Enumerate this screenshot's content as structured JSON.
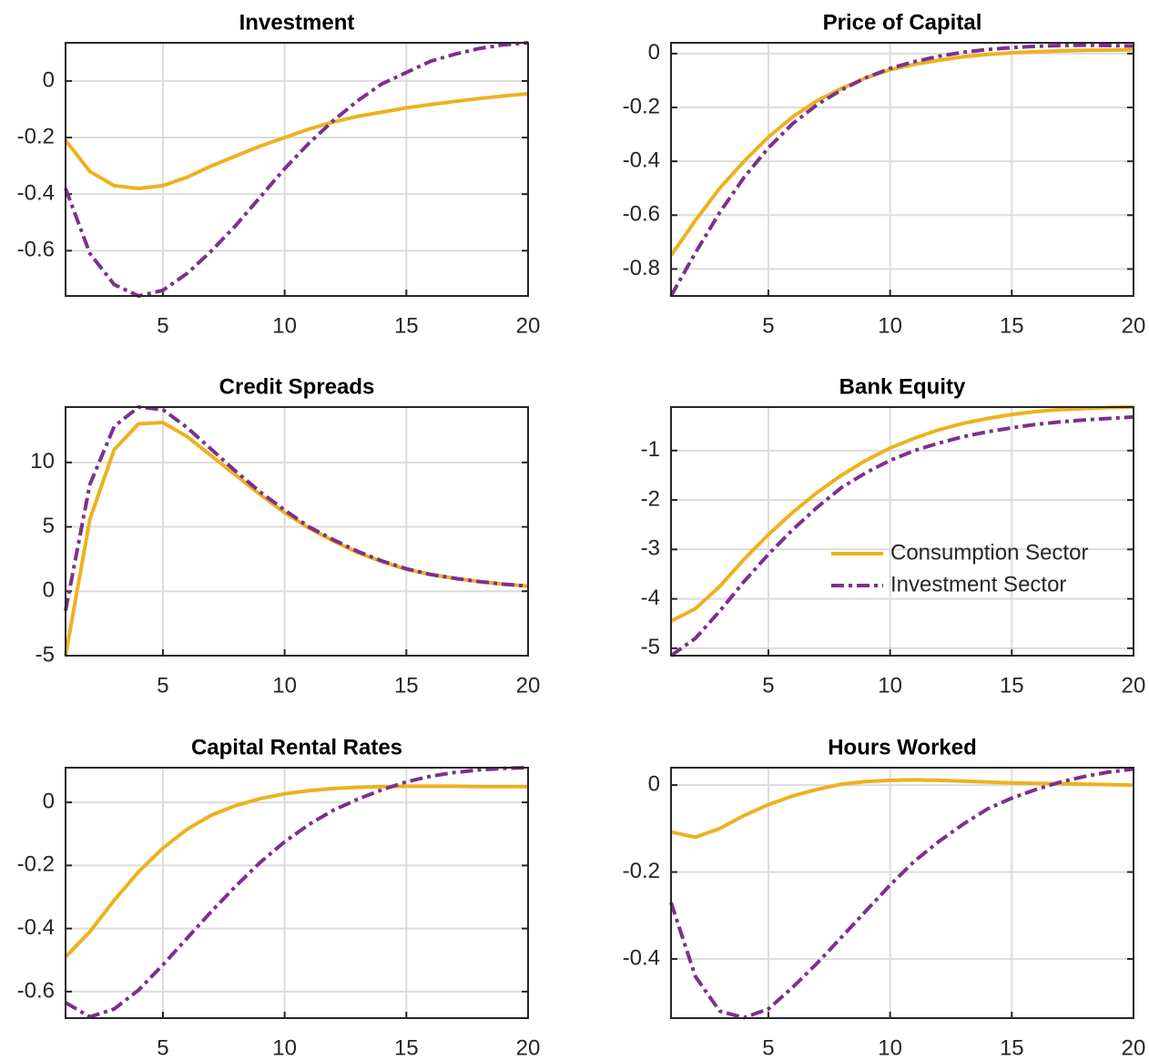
{
  "chart_data": [
    {
      "type": "line",
      "title": "Investment",
      "grid": true,
      "x": [
        1,
        2,
        3,
        4,
        5,
        6,
        7,
        8,
        9,
        10,
        11,
        12,
        13,
        14,
        15,
        16,
        17,
        18,
        19,
        20
      ],
      "xlim": [
        1,
        20
      ],
      "xticks": [
        5,
        10,
        15,
        20
      ],
      "ylim": [
        -0.76,
        0.135
      ],
      "yticks": [
        -0.6,
        -0.4,
        -0.2,
        0
      ],
      "series": [
        {
          "color": "#EDB120",
          "style": "solid",
          "values": [
            -0.21,
            -0.32,
            -0.37,
            -0.38,
            -0.37,
            -0.34,
            -0.3,
            -0.265,
            -0.23,
            -0.2,
            -0.17,
            -0.145,
            -0.125,
            -0.11,
            -0.095,
            -0.083,
            -0.072,
            -0.062,
            -0.053,
            -0.045
          ]
        },
        {
          "color": "#7E2F8E",
          "style": "dashdot",
          "values": [
            -0.38,
            -0.61,
            -0.72,
            -0.76,
            -0.74,
            -0.68,
            -0.6,
            -0.51,
            -0.41,
            -0.31,
            -0.22,
            -0.14,
            -0.07,
            -0.01,
            0.03,
            0.07,
            0.095,
            0.115,
            0.128,
            0.135
          ]
        }
      ]
    },
    {
      "type": "line",
      "title": "Price of Capital",
      "grid": true,
      "x": [
        1,
        2,
        3,
        4,
        5,
        6,
        7,
        8,
        9,
        10,
        11,
        12,
        13,
        14,
        15,
        16,
        17,
        18,
        19,
        20
      ],
      "xlim": [
        1,
        20
      ],
      "xticks": [
        5,
        10,
        15,
        20
      ],
      "ylim": [
        -0.9,
        0.04
      ],
      "yticks": [
        -0.8,
        -0.6,
        -0.4,
        -0.2,
        0
      ],
      "series": [
        {
          "color": "#EDB120",
          "style": "solid",
          "values": [
            -0.75,
            -0.62,
            -0.5,
            -0.4,
            -0.31,
            -0.235,
            -0.175,
            -0.13,
            -0.09,
            -0.06,
            -0.04,
            -0.025,
            -0.012,
            -0.003,
            0.003,
            0.007,
            0.01,
            0.012,
            0.013,
            0.014
          ]
        },
        {
          "color": "#7E2F8E",
          "style": "dashdot",
          "values": [
            -0.9,
            -0.74,
            -0.59,
            -0.46,
            -0.35,
            -0.26,
            -0.19,
            -0.135,
            -0.09,
            -0.055,
            -0.03,
            -0.01,
            0.005,
            0.015,
            0.022,
            0.027,
            0.03,
            0.031,
            0.03,
            0.028
          ]
        }
      ]
    },
    {
      "type": "line",
      "title": "Credit Spreads",
      "grid": true,
      "x": [
        1,
        2,
        3,
        4,
        5,
        6,
        7,
        8,
        9,
        10,
        11,
        12,
        13,
        14,
        15,
        16,
        17,
        18,
        19,
        20
      ],
      "xlim": [
        1,
        20
      ],
      "xticks": [
        5,
        10,
        15,
        20
      ],
      "ylim": [
        -5,
        14.3
      ],
      "yticks": [
        -5,
        0,
        5,
        10
      ],
      "series": [
        {
          "color": "#EDB120",
          "style": "solid",
          "values": [
            -5,
            5.6,
            11,
            13,
            13.1,
            12,
            10.5,
            9,
            7.5,
            6.1,
            4.9,
            3.9,
            3.0,
            2.3,
            1.7,
            1.3,
            1.0,
            0.75,
            0.55,
            0.4
          ]
        },
        {
          "color": "#7E2F8E",
          "style": "dashdot",
          "values": [
            -1.5,
            8.3,
            12.8,
            14.3,
            14.1,
            12.7,
            11,
            9.3,
            7.7,
            6.3,
            5.0,
            4.0,
            3.1,
            2.35,
            1.75,
            1.3,
            1.0,
            0.75,
            0.55,
            0.4
          ]
        }
      ]
    },
    {
      "type": "line",
      "title": "Bank Equity",
      "grid": true,
      "legend": "lower right",
      "x": [
        1,
        2,
        3,
        4,
        5,
        6,
        7,
        8,
        9,
        10,
        11,
        12,
        13,
        14,
        15,
        16,
        17,
        18,
        19,
        20
      ],
      "xlim": [
        1,
        20
      ],
      "xticks": [
        5,
        10,
        15,
        20
      ],
      "ylim": [
        -5.15,
        -0.12
      ],
      "yticks": [
        -5,
        -4,
        -3,
        -2,
        -1
      ],
      "series": [
        {
          "name": "Consumption Sector",
          "color": "#EDB120",
          "style": "solid",
          "values": [
            -4.45,
            -4.2,
            -3.75,
            -3.2,
            -2.7,
            -2.25,
            -1.85,
            -1.5,
            -1.2,
            -0.95,
            -0.75,
            -0.58,
            -0.45,
            -0.35,
            -0.27,
            -0.21,
            -0.17,
            -0.15,
            -0.13,
            -0.12
          ]
        },
        {
          "name": "Investment Sector",
          "color": "#7E2F8E",
          "style": "dashdot",
          "values": [
            -5.15,
            -4.8,
            -4.25,
            -3.65,
            -3.1,
            -2.6,
            -2.15,
            -1.75,
            -1.45,
            -1.2,
            -1.0,
            -0.85,
            -0.72,
            -0.62,
            -0.54,
            -0.47,
            -0.42,
            -0.38,
            -0.35,
            -0.32
          ]
        }
      ]
    },
    {
      "type": "line",
      "title": "Capital Rental Rates",
      "grid": true,
      "x": [
        1,
        2,
        3,
        4,
        5,
        6,
        7,
        8,
        9,
        10,
        11,
        12,
        13,
        14,
        15,
        16,
        17,
        18,
        19,
        20
      ],
      "xlim": [
        1,
        20
      ],
      "xticks": [
        5,
        10,
        15,
        20
      ],
      "ylim": [
        -0.684,
        0.11
      ],
      "yticks": [
        -0.6,
        -0.4,
        -0.2,
        0
      ],
      "series": [
        {
          "color": "#EDB120",
          "style": "solid",
          "values": [
            -0.49,
            -0.41,
            -0.31,
            -0.22,
            -0.145,
            -0.085,
            -0.04,
            -0.01,
            0.012,
            0.027,
            0.037,
            0.044,
            0.048,
            0.05,
            0.051,
            0.051,
            0.051,
            0.05,
            0.05,
            0.05
          ]
        },
        {
          "color": "#7E2F8E",
          "style": "dashdot",
          "values": [
            -0.635,
            -0.68,
            -0.655,
            -0.595,
            -0.515,
            -0.43,
            -0.345,
            -0.265,
            -0.19,
            -0.125,
            -0.07,
            -0.025,
            0.01,
            0.04,
            0.065,
            0.083,
            0.095,
            0.103,
            0.108,
            0.11
          ]
        }
      ]
    },
    {
      "type": "line",
      "title": "Hours Worked",
      "grid": true,
      "x": [
        1,
        2,
        3,
        4,
        5,
        6,
        7,
        8,
        9,
        10,
        11,
        12,
        13,
        14,
        15,
        16,
        17,
        18,
        19,
        20
      ],
      "xlim": [
        1,
        20
      ],
      "xticks": [
        5,
        10,
        15,
        20
      ],
      "ylim": [
        -0.536,
        0.04
      ],
      "yticks": [
        -0.4,
        -0.2,
        0
      ],
      "series": [
        {
          "color": "#EDB120",
          "style": "solid",
          "values": [
            -0.108,
            -0.12,
            -0.1,
            -0.07,
            -0.045,
            -0.025,
            -0.01,
            0.002,
            0.008,
            0.011,
            0.012,
            0.011,
            0.009,
            0.007,
            0.005,
            0.004,
            0.003,
            0.002,
            0.001,
            0.0
          ]
        },
        {
          "color": "#7E2F8E",
          "style": "dashdot",
          "values": [
            -0.27,
            -0.44,
            -0.52,
            -0.535,
            -0.515,
            -0.465,
            -0.41,
            -0.35,
            -0.29,
            -0.23,
            -0.175,
            -0.13,
            -0.09,
            -0.055,
            -0.03,
            -0.01,
            0.007,
            0.02,
            0.03,
            0.037
          ]
        }
      ]
    }
  ]
}
